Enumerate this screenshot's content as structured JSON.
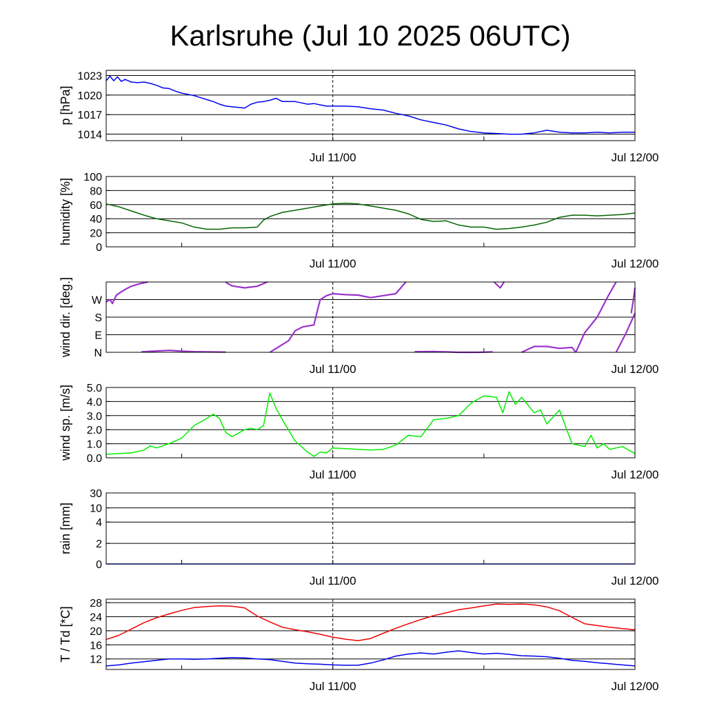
{
  "chart_data": {
    "type": "line",
    "title": "Karlsruhe (Jul 10 2025 06UTC)",
    "x_tick_labels": [
      "Jul 11/00",
      "Jul 12/00"
    ],
    "x_range_hours": [
      0,
      42
    ],
    "panels": [
      {
        "id": "pressure",
        "ylabel": "p [hPa]",
        "ylim": [
          1013,
          1023.8
        ],
        "ytick_values": [
          1014,
          1017,
          1020,
          1023
        ],
        "ytick_labels": [
          "1014",
          "1017",
          "1020",
          "1023"
        ],
        "series": [
          {
            "color": "#0000ee",
            "x": [
              0,
              0.3,
              0.6,
              0.9,
              1.2,
              1.5,
              2,
              2.5,
              3,
              3.5,
              4,
              4.5,
              5,
              5.5,
              6,
              6.5,
              7,
              7.5,
              8,
              8.5,
              9,
              9.5,
              10,
              10.5,
              11,
              11.5,
              12,
              12.5,
              13,
              13.5,
              14,
              14.5,
              15,
              15.5,
              16,
              16.5,
              17,
              17.5,
              18,
              19,
              20,
              21,
              22,
              23,
              24,
              25,
              26,
              27,
              28,
              29,
              30,
              31,
              32,
              33,
              34,
              35,
              36,
              37,
              38,
              39,
              40,
              41,
              42
            ],
            "values": [
              1022.2,
              1022.9,
              1022.2,
              1022.8,
              1022.1,
              1022.4,
              1022.0,
              1021.9,
              1022.0,
              1021.8,
              1021.5,
              1021.1,
              1021.0,
              1020.6,
              1020.3,
              1020.1,
              1019.9,
              1019.6,
              1019.3,
              1019.0,
              1018.6,
              1018.3,
              1018.2,
              1018.1,
              1018.0,
              1018.6,
              1018.9,
              1019.0,
              1019.2,
              1019.5,
              1019.0,
              1019.0,
              1019.0,
              1018.8,
              1018.6,
              1018.7,
              1018.5,
              1018.3,
              1018.3,
              1018.3,
              1018.2,
              1017.9,
              1017.7,
              1017.2,
              1016.8,
              1016.2,
              1015.8,
              1015.4,
              1014.8,
              1014.4,
              1014.2,
              1014.1,
              1014.0,
              1014.0,
              1014.2,
              1014.6,
              1014.3,
              1014.2,
              1014.2,
              1014.3,
              1014.2,
              1014.3,
              1014.3
            ]
          }
        ]
      },
      {
        "id": "humidity",
        "ylabel": "humidity [%]",
        "ylim": [
          0,
          100
        ],
        "ytick_values": [
          0,
          20,
          40,
          60,
          80,
          100
        ],
        "ytick_labels": [
          "0",
          "20",
          "40",
          "60",
          "80",
          "100"
        ],
        "series": [
          {
            "color": "#006400",
            "x": [
              0,
              1,
              2,
              3,
              4,
              5,
              6,
              7,
              8,
              9,
              10,
              11,
              12,
              12.5,
              13,
              14,
              15,
              16,
              17,
              18,
              19,
              20,
              21,
              22,
              23,
              24,
              25,
              26,
              27,
              28,
              29,
              30,
              31,
              32,
              33,
              34,
              35,
              36,
              37,
              38,
              39,
              40,
              41,
              42
            ],
            "values": [
              61,
              57,
              51,
              45,
              40,
              37,
              34,
              28,
              25,
              25,
              27,
              27,
              28,
              38,
              43,
              49,
              52,
              55,
              58,
              61,
              62,
              61,
              58,
              55,
              52,
              47,
              39,
              36,
              37,
              31,
              28,
              28,
              25,
              26,
              28,
              31,
              35,
              42,
              45,
              45,
              44,
              45,
              46,
              48
            ]
          }
        ]
      },
      {
        "id": "wind_direction",
        "ylabel": "wind dir. [deg.]",
        "ylim": [
          0,
          360
        ],
        "ytick_values": [
          0,
          90,
          180,
          270
        ],
        "ytick_labels": [
          "N",
          "E",
          "S",
          "W"
        ],
        "series": [
          {
            "color": "#9932cc",
            "segments": [
              {
                "x": [
                  0,
                  0.3,
                  0.5,
                  0.8,
                  1.2,
                  1.6,
                  2,
                  2.6,
                  3.3
                ],
                "values": [
                  258,
                  270,
                  250,
                  292,
                  310,
                  325,
                  338,
                  350,
                  360
                ]
              },
              {
                "x": [
                  2.8,
                  3.5,
                  5,
                  6,
                  7,
                  8,
                  9.5
                ],
                "values": [
                  2,
                  5,
                  10,
                  6,
                  3,
                  2,
                  1
                ]
              },
              {
                "x": [
                  9.5,
                  10,
                  11,
                  12,
                  12.8
                ],
                "values": [
                  358,
                  340,
                  330,
                  338,
                  360
                ]
              },
              {
                "x": [
                  13,
                  14,
                  14.5,
                  15,
                  15.6,
                  16.5,
                  16.8,
                  17,
                  17.5,
                  18,
                  19,
                  20,
                  21,
                  22,
                  23,
                  23.8
                ],
                "values": [
                  0,
                  40,
                  60,
                  110,
                  130,
                  140,
                  220,
                  270,
                  290,
                  300,
                  295,
                  293,
                  280,
                  290,
                  300,
                  360
                ]
              },
              {
                "x": [
                  24.5,
                  26,
                  27,
                  28,
                  29.5,
                  30.7
                ],
                "values": [
                  3,
                  4,
                  2,
                  0,
                  0,
                  2
                ]
              },
              {
                "x": [
                  30.8,
                  31.3,
                  31.6
                ],
                "values": [
                  360,
                  330,
                  360
                ]
              },
              {
                "x": [
                  33,
                  34,
                  35,
                  36,
                  37,
                  37.3
                ],
                "values": [
                  0,
                  30,
                  30,
                  20,
                  25,
                  0
                ]
              },
              {
                "x": [
                  37.3,
                  38,
                  39,
                  39.8,
                  40.5
                ],
                "values": [
                  0,
                  100,
                  180,
                  280,
                  360
                ]
              },
              {
                "x": [
                  40.5,
                  41.3,
                  42
                ],
                "values": [
                  0,
                  100,
                  200
                ]
              },
              {
                "x": [
                  41.7,
                  41.85,
                  42
                ],
                "values": [
                  200,
                  260,
                  330
                ]
              }
            ]
          }
        ]
      },
      {
        "id": "wind_speed",
        "ylabel": "wind sp. [m/s]",
        "ylim": [
          0,
          5
        ],
        "ytick_values": [
          0,
          1,
          2,
          3,
          4,
          5
        ],
        "ytick_labels": [
          "0.0",
          "1.0",
          "2.0",
          "3.0",
          "4.0",
          "5.0"
        ],
        "series": [
          {
            "color": "#00ee00",
            "x": [
              0,
              1,
              2,
              3,
              3.5,
              4,
              5,
              6,
              7,
              8,
              8.5,
              9,
              9.5,
              10,
              11,
              11.5,
              12,
              12.5,
              13,
              13.5,
              14,
              15,
              16,
              16.5,
              17,
              17.5,
              18,
              19,
              20,
              21,
              22,
              23,
              24,
              25,
              26,
              27,
              28,
              29,
              30,
              31,
              31.5,
              32,
              32.5,
              33,
              34,
              34.5,
              35,
              36,
              37,
              38,
              38.5,
              39,
              39.5,
              40,
              41,
              42
            ],
            "values": [
              0.25,
              0.3,
              0.35,
              0.55,
              0.85,
              0.7,
              1.0,
              1.4,
              2.3,
              2.8,
              3.1,
              2.8,
              1.8,
              1.5,
              2.0,
              2.1,
              2.0,
              2.3,
              4.6,
              3.5,
              2.7,
              1.2,
              0.4,
              0.1,
              0.4,
              0.35,
              0.7,
              0.65,
              0.6,
              0.55,
              0.6,
              0.9,
              1.6,
              1.5,
              2.7,
              2.8,
              3.0,
              3.9,
              4.4,
              4.3,
              3.2,
              4.7,
              3.8,
              4.3,
              3.2,
              3.4,
              2.4,
              3.4,
              1.0,
              0.8,
              1.6,
              0.7,
              1.0,
              0.6,
              0.8,
              0.3
            ]
          }
        ]
      },
      {
        "id": "rain",
        "ylabel": "rain [mm]",
        "scale": "pseudo-log",
        "ylim": [
          0,
          30
        ],
        "ytick_values": [
          0,
          2,
          4,
          10,
          30
        ],
        "ytick_labels": [
          "0",
          "2",
          "4",
          "10",
          "30"
        ],
        "series": [
          {
            "color": "#0000ee",
            "x": [
              0,
              42
            ],
            "values": [
              0,
              0
            ]
          }
        ]
      },
      {
        "id": "temperature",
        "ylabel": "T / Td [*C]",
        "ylim": [
          9,
          29
        ],
        "ytick_values": [
          12,
          16,
          20,
          24,
          28
        ],
        "ytick_labels": [
          "12",
          "16",
          "20",
          "24",
          "28"
        ],
        "series": [
          {
            "color": "#ee0000",
            "x": [
              0,
              1,
              2,
              3,
              4,
              5,
              6,
              7,
              8,
              9,
              10,
              11,
              12,
              13,
              14,
              15,
              16,
              17,
              18,
              19,
              20,
              21,
              22,
              23,
              24,
              25,
              26,
              27,
              28,
              29,
              30,
              31,
              32,
              33,
              34,
              35,
              36,
              37,
              38,
              39,
              40,
              41,
              42
            ],
            "values": [
              17.5,
              18.7,
              20.5,
              22.3,
              23.7,
              24.8,
              25.8,
              26.6,
              26.9,
              27.1,
              27.0,
              26.5,
              24.2,
              22.5,
              21.0,
              20.3,
              19.7,
              19.0,
              18.2,
              17.6,
              17.2,
              17.8,
              19.3,
              20.7,
              22.0,
              23.2,
              24.3,
              25.1,
              26.0,
              26.5,
              27.1,
              27.6,
              27.5,
              27.6,
              27.4,
              26.8,
              25.7,
              23.8,
              22.0,
              21.5,
              21.0,
              20.6,
              20.3
            ]
          },
          {
            "color": "#0000ee",
            "x": [
              0,
              1,
              2,
              3,
              4,
              5,
              6,
              7,
              8,
              9,
              10,
              11,
              12,
              13,
              14,
              15,
              16,
              17,
              18,
              19,
              20,
              21,
              22,
              23,
              24,
              25,
              26,
              27,
              28,
              29,
              30,
              31,
              32,
              33,
              34,
              35,
              36,
              37,
              38,
              39,
              40,
              41,
              42
            ],
            "values": [
              10.0,
              10.3,
              10.8,
              11.2,
              11.6,
              12.0,
              12.0,
              11.9,
              12.0,
              12.2,
              12.4,
              12.3,
              12.0,
              11.8,
              11.3,
              10.8,
              10.6,
              10.5,
              10.3,
              10.2,
              10.2,
              10.8,
              11.7,
              12.8,
              13.4,
              13.7,
              13.4,
              13.9,
              14.3,
              13.8,
              13.4,
              13.6,
              13.3,
              12.9,
              12.8,
              12.6,
              12.2,
              11.6,
              11.3,
              10.9,
              10.6,
              10.3,
              10.0
            ]
          }
        ]
      }
    ]
  }
}
